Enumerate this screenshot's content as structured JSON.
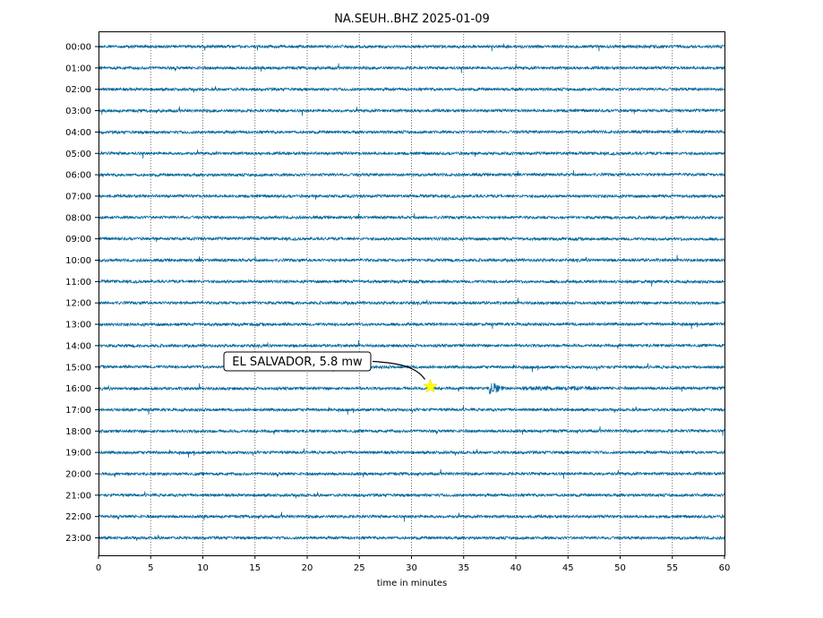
{
  "chart_data": {
    "type": "line",
    "title": "NA.SEUH..BHZ 2025-01-09",
    "xlabel": "time in minutes",
    "ylabel": "",
    "xlim": [
      0,
      60
    ],
    "x_ticks": [
      0,
      5,
      10,
      15,
      20,
      25,
      30,
      35,
      40,
      45,
      50,
      55,
      60
    ],
    "rows": [
      "00:00",
      "01:00",
      "02:00",
      "03:00",
      "04:00",
      "05:00",
      "06:00",
      "07:00",
      "08:00",
      "09:00",
      "10:00",
      "11:00",
      "12:00",
      "13:00",
      "14:00",
      "15:00",
      "16:00",
      "17:00",
      "18:00",
      "19:00",
      "20:00",
      "21:00",
      "22:00",
      "23:00"
    ],
    "grid": "vertical dotted",
    "trace_color": "#00659b",
    "event": {
      "label": "EL SALVADOR, 5.8 mw",
      "row": "16:00",
      "minute": 31.8,
      "arrival_minute": 37.6,
      "marker_color": "#ffff00"
    }
  }
}
